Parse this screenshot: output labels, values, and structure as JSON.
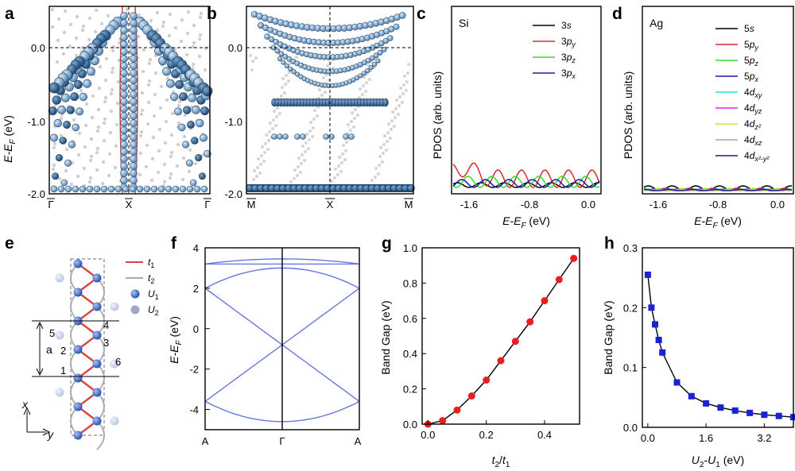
{
  "figure": {
    "panel_letters": [
      "a",
      "b",
      "c",
      "d",
      "e",
      "f",
      "g",
      "h"
    ],
    "a": {
      "ylabel": "E-E",
      "ylabel_sub": "F",
      "ylabel_unit": " (eV)",
      "yticks": [
        "0.0",
        "-1.0",
        "-2.0"
      ],
      "xticks": [
        "Γ",
        "X",
        "Γ"
      ]
    },
    "b": {
      "yticks": [
        "0.0",
        "-1.0",
        "-2.0"
      ],
      "xticks": [
        "M",
        "X",
        "M"
      ]
    },
    "c": {
      "element": "Si",
      "ylabel": "PDOS (arb. units)",
      "xticks": [
        "-1.6",
        "-0.8",
        "0.0"
      ],
      "xlabel": "E-E",
      "xlabel_sub": "F",
      "xlabel_unit": " (eV)",
      "legend": [
        {
          "main": "3",
          "ital": "s",
          "sub": "",
          "color": "#000000"
        },
        {
          "main": "3",
          "ital": "p",
          "sub": "y",
          "color": "#d62a2a"
        },
        {
          "main": "3",
          "ital": "p",
          "sub": "z",
          "color": "#33dd33"
        },
        {
          "main": "3",
          "ital": "p",
          "sub": "x",
          "color": "#1a1aaa"
        }
      ]
    },
    "d": {
      "element": "Ag",
      "ylabel": "PDOS (arb. units)",
      "xticks": [
        "-1.6",
        "-0.8",
        "0.0"
      ],
      "xlabel": "E-E",
      "xlabel_sub": "F",
      "xlabel_unit": " (eV)",
      "legend": [
        {
          "main": "5",
          "ital": "s",
          "sub": "",
          "color": "#000000"
        },
        {
          "main": "5",
          "ital": "p",
          "sub": "y",
          "color": "#d62a2a"
        },
        {
          "main": "5",
          "ital": "p",
          "sub": "z",
          "color": "#33dd33"
        },
        {
          "main": "5",
          "ital": "p",
          "sub": "x",
          "color": "#1a1aaa"
        },
        {
          "main": "4",
          "ital": "d",
          "sub": "xy",
          "color": "#22dddd"
        },
        {
          "main": "4",
          "ital": "d",
          "sub": "yz",
          "color": "#dd22dd"
        },
        {
          "main": "4",
          "ital": "d",
          "sub": "z²",
          "color": "#dddd22"
        },
        {
          "main": "4",
          "ital": "d",
          "sub": "xz",
          "color": "#aaaaaa"
        },
        {
          "main": "4",
          "ital": "d",
          "sub": "x²-y²",
          "color": "#1a1a88"
        }
      ]
    },
    "e": {
      "legend": [
        {
          "sym": "t",
          "sub": "1",
          "color": "#d94848"
        },
        {
          "sym": "t",
          "sub": "2",
          "color": "#aaaaaa"
        },
        {
          "sym": "U",
          "sub": "1",
          "color": "#2f5fc4"
        },
        {
          "sym": "U",
          "sub": "2",
          "color": "#9fa8c8"
        }
      ],
      "site_numbers": [
        "1",
        "2",
        "3",
        "4",
        "5",
        "6"
      ],
      "lattice_label": "a",
      "axis_x": "x",
      "axis_y": "y"
    },
    "f": {
      "ylabel": "E-E",
      "ylabel_sub": "F",
      "ylabel_unit": " (eV)",
      "yticks": [
        "4",
        "2",
        "0",
        "-2",
        "-4"
      ],
      "xticks": [
        "A",
        "Γ",
        "A"
      ]
    },
    "g": {
      "ylabel": "Band Gap (eV)",
      "yticks": [
        "0.0",
        "0.2",
        "0.4",
        "0.6",
        "0.8",
        "1.0"
      ],
      "xticks": [
        "0.0",
        "0.2",
        "0.4"
      ],
      "xlabel_t2": "t",
      "xlabel_t2_sub": "2",
      "xlabel_slash": "/",
      "xlabel_t1": "t",
      "xlabel_t1_sub": "1"
    },
    "h": {
      "ylabel": "Band Gap (eV)",
      "yticks": [
        "0.0",
        "0.1",
        "0.2",
        "0.3"
      ],
      "xticks": [
        "0.0",
        "1.6",
        "3.2"
      ],
      "xlabel_u2": "U",
      "xlabel_u2_sub": "2",
      "xlabel_dash": "-",
      "xlabel_u1": "U",
      "xlabel_u1_sub": "1",
      "xlabel_unit": " (eV)"
    }
  },
  "chart_data": [
    {
      "type": "scatter",
      "panel": "g",
      "x": [
        0.0,
        0.05,
        0.1,
        0.15,
        0.2,
        0.25,
        0.3,
        0.35,
        0.4,
        0.45,
        0.5
      ],
      "y": [
        0.0,
        0.02,
        0.08,
        0.16,
        0.25,
        0.36,
        0.47,
        0.58,
        0.7,
        0.82,
        0.94
      ],
      "xlim": [
        -0.02,
        0.52
      ],
      "ylim": [
        0.0,
        1.0
      ],
      "marker_color": "#ee1c1c",
      "line_color": "#000000"
    },
    {
      "type": "scatter",
      "panel": "h",
      "x": [
        0.0,
        0.1,
        0.2,
        0.3,
        0.4,
        0.8,
        1.2,
        1.6,
        2.0,
        2.4,
        2.8,
        3.2,
        3.6,
        4.0
      ],
      "y": [
        0.255,
        0.2,
        0.172,
        0.146,
        0.125,
        0.075,
        0.052,
        0.04,
        0.033,
        0.028,
        0.024,
        0.021,
        0.019,
        0.017
      ],
      "xlim": [
        -0.15,
        4.0
      ],
      "ylim": [
        0.0,
        0.3
      ],
      "marker_color": "#1a22d4",
      "line_color": "#000000"
    },
    {
      "type": "line",
      "panel": "f",
      "x_ticks_positions": [
        "A",
        "Γ",
        "A"
      ],
      "ylim": [
        -5,
        4
      ],
      "series_color": "#6677dd"
    }
  ]
}
